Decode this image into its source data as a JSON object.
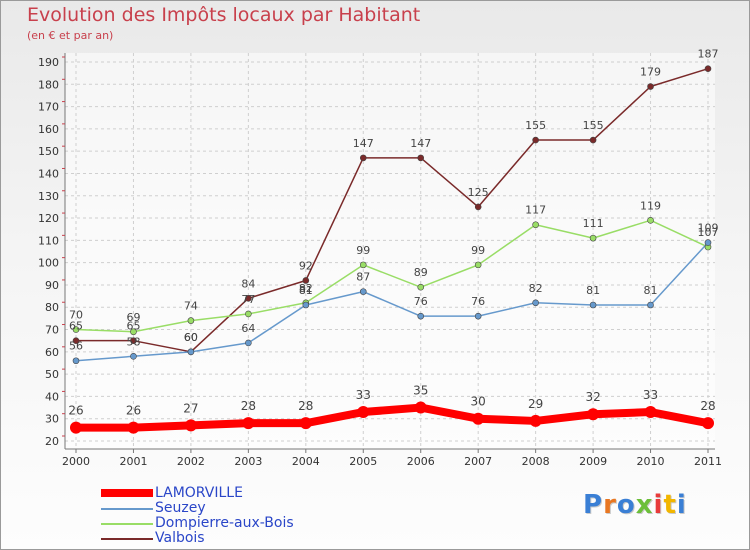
{
  "title": "Evolution des Impôts locaux par Habitant",
  "subtitle": "(en € et par an)",
  "logo": {
    "text": "Proxiti",
    "colors": [
      "#3a7fd5",
      "#e87722",
      "#3a7fd5",
      "#6cbf3a",
      "#e83b3b",
      "#f2b600",
      "#3a7fd5"
    ]
  },
  "chart_data": {
    "type": "line",
    "x": [
      "2000",
      "2001",
      "2002",
      "2003",
      "2004",
      "2005",
      "2006",
      "2007",
      "2008",
      "2009",
      "2010",
      "2011"
    ],
    "ylim": [
      20,
      190
    ],
    "yticks": [
      20,
      30,
      40,
      50,
      60,
      70,
      80,
      90,
      100,
      110,
      120,
      130,
      140,
      150,
      160,
      170,
      180,
      190
    ],
    "grid": true,
    "legend_position": "bottom-left",
    "series": [
      {
        "name": "LAMORVILLE",
        "values": [
          26,
          26,
          27,
          28,
          28,
          33,
          35,
          30,
          29,
          32,
          33,
          28
        ],
        "color": "#ff0000",
        "emphasis": true
      },
      {
        "name": "Seuzey",
        "values": [
          56,
          58,
          60,
          64,
          81,
          87,
          76,
          76,
          82,
          81,
          81,
          109
        ],
        "color": "#6699cc"
      },
      {
        "name": "Dompierre-aux-Bois",
        "values": [
          70,
          69,
          74,
          77,
          82,
          99,
          89,
          99,
          117,
          111,
          119,
          107
        ],
        "color": "#99dd66"
      },
      {
        "name": "Valbois",
        "values": [
          65,
          65,
          60,
          84,
          92,
          147,
          147,
          125,
          155,
          155,
          179,
          187
        ],
        "color": "#7a2a2a"
      }
    ],
    "data_labels": {
      "LAMORVILLE": [
        "26",
        "26",
        "27",
        "28",
        "28",
        "33",
        "35",
        "30",
        "29",
        "32",
        "33",
        "28"
      ],
      "Seuzey": [
        "56",
        "58",
        "60",
        "64",
        "81",
        "87",
        "76",
        "76",
        "82",
        "81",
        "81",
        "109"
      ],
      "Dompierre-aux-Bois": [
        "70",
        "69",
        "74",
        "77",
        "82",
        "99",
        "89",
        "99",
        "117",
        "111",
        "119",
        "107"
      ],
      "Valbois": [
        "65",
        "65",
        "60",
        "84",
        "92",
        "147",
        "147",
        "125",
        "155",
        "155",
        "179",
        "187"
      ]
    }
  }
}
